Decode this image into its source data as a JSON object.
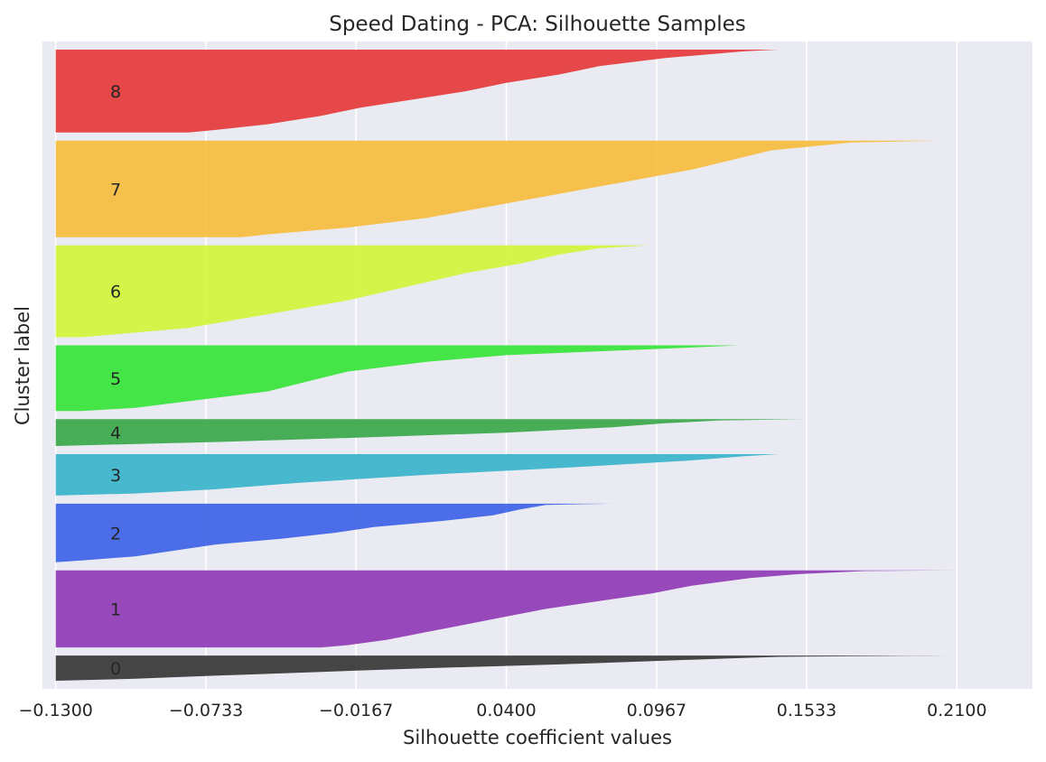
{
  "chart_data": {
    "type": "area",
    "title": "Speed Dating - PCA: Silhouette Samples",
    "xlabel": "Silhouette coefficient values",
    "ylabel": "Cluster label",
    "xlim": [
      -0.135,
      0.2385
    ],
    "xticks": [
      -0.13,
      -0.0733,
      -0.0167,
      0.04,
      0.0967,
      0.1533,
      0.21
    ],
    "xtick_labels": [
      "−0.1300",
      "−0.0733",
      "−0.0167",
      "0.0400",
      "0.0967",
      "0.1533",
      "0.2100"
    ],
    "grid": true,
    "baseline": -0.13,
    "clusters": [
      {
        "label": "0",
        "color": "#333333",
        "size": 31,
        "profile": [
          [
            0.0,
            0.2065
          ],
          [
            0.02,
            0.175
          ],
          [
            0.05,
            0.143
          ],
          [
            0.1,
            0.128
          ],
          [
            0.2,
            0.1
          ],
          [
            0.35,
            0.06
          ],
          [
            0.5,
            0.01
          ],
          [
            0.65,
            -0.03
          ],
          [
            0.8,
            -0.07
          ],
          [
            0.92,
            -0.1
          ],
          [
            1.0,
            -0.13
          ]
        ]
      },
      {
        "label": "1",
        "color": "#8e36b4",
        "size": 95,
        "profile": [
          [
            0.0,
            0.21
          ],
          [
            0.01,
            0.175
          ],
          [
            0.05,
            0.15
          ],
          [
            0.1,
            0.132
          ],
          [
            0.2,
            0.11
          ],
          [
            0.3,
            0.095
          ],
          [
            0.4,
            0.075
          ],
          [
            0.5,
            0.055
          ],
          [
            0.6,
            0.04
          ],
          [
            0.7,
            0.025
          ],
          [
            0.8,
            0.01
          ],
          [
            0.9,
            -0.005
          ],
          [
            0.97,
            -0.02
          ],
          [
            1.0,
            -0.03
          ]
        ]
      },
      {
        "label": "2",
        "color": "#3a5fe5",
        "size": 72,
        "profile": [
          [
            0.0,
            0.08
          ],
          [
            0.02,
            0.055
          ],
          [
            0.1,
            0.045
          ],
          [
            0.2,
            0.035
          ],
          [
            0.3,
            0.015
          ],
          [
            0.4,
            -0.01
          ],
          [
            0.5,
            -0.025
          ],
          [
            0.6,
            -0.045
          ],
          [
            0.7,
            -0.07
          ],
          [
            0.8,
            -0.085
          ],
          [
            0.9,
            -0.1
          ],
          [
            0.97,
            -0.12
          ],
          [
            1.0,
            -0.13
          ]
        ]
      },
      {
        "label": "3",
        "color": "#35b3c9",
        "size": 51,
        "profile": [
          [
            0.0,
            0.1425
          ],
          [
            0.05,
            0.13
          ],
          [
            0.15,
            0.11
          ],
          [
            0.3,
            0.07
          ],
          [
            0.5,
            0.01
          ],
          [
            0.7,
            -0.04
          ],
          [
            0.85,
            -0.07
          ],
          [
            0.95,
            -0.1
          ],
          [
            1.0,
            -0.13
          ]
        ]
      },
      {
        "label": "4",
        "color": "#35a645",
        "size": 33,
        "profile": [
          [
            0.0,
            0.1525
          ],
          [
            0.05,
            0.12
          ],
          [
            0.15,
            0.1
          ],
          [
            0.3,
            0.08
          ],
          [
            0.5,
            0.04
          ],
          [
            0.7,
            -0.02
          ],
          [
            0.85,
            -0.07
          ],
          [
            0.95,
            -0.11
          ],
          [
            1.0,
            -0.13
          ]
        ]
      },
      {
        "label": "5",
        "color": "#33e334",
        "size": 81,
        "profile": [
          [
            0.0,
            0.128
          ],
          [
            0.05,
            0.1
          ],
          [
            0.15,
            0.04
          ],
          [
            0.25,
            0.01
          ],
          [
            0.4,
            -0.02
          ],
          [
            0.55,
            -0.035
          ],
          [
            0.7,
            -0.05
          ],
          [
            0.85,
            -0.08
          ],
          [
            0.95,
            -0.1
          ],
          [
            1.0,
            -0.12
          ]
        ]
      },
      {
        "label": "6",
        "color": "#d2f536",
        "size": 113,
        "profile": [
          [
            0.0,
            0.0935
          ],
          [
            0.03,
            0.075
          ],
          [
            0.1,
            0.06
          ],
          [
            0.2,
            0.045
          ],
          [
            0.3,
            0.025
          ],
          [
            0.4,
            0.01
          ],
          [
            0.5,
            -0.005
          ],
          [
            0.6,
            -0.02
          ],
          [
            0.7,
            -0.04
          ],
          [
            0.8,
            -0.06
          ],
          [
            0.9,
            -0.08
          ],
          [
            0.95,
            -0.1
          ],
          [
            1.0,
            -0.12
          ]
        ]
      },
      {
        "label": "7",
        "color": "#f7bb3a",
        "size": 119,
        "profile": [
          [
            0.0,
            0.2035
          ],
          [
            0.02,
            0.17
          ],
          [
            0.1,
            0.14
          ],
          [
            0.2,
            0.125
          ],
          [
            0.3,
            0.11
          ],
          [
            0.4,
            0.09
          ],
          [
            0.5,
            0.07
          ],
          [
            0.6,
            0.05
          ],
          [
            0.7,
            0.03
          ],
          [
            0.8,
            0.01
          ],
          [
            0.9,
            -0.02
          ],
          [
            0.97,
            -0.05
          ],
          [
            1.0,
            -0.06
          ]
        ]
      },
      {
        "label": "8",
        "color": "#e53535",
        "size": 102,
        "profile": [
          [
            0.0,
            0.1425
          ],
          [
            0.02,
            0.13
          ],
          [
            0.1,
            0.1
          ],
          [
            0.2,
            0.075
          ],
          [
            0.3,
            0.06
          ],
          [
            0.4,
            0.04
          ],
          [
            0.5,
            0.025
          ],
          [
            0.6,
            0.005
          ],
          [
            0.7,
            -0.015
          ],
          [
            0.8,
            -0.03
          ],
          [
            0.9,
            -0.05
          ],
          [
            0.97,
            -0.07
          ],
          [
            1.0,
            -0.08
          ]
        ]
      }
    ]
  }
}
